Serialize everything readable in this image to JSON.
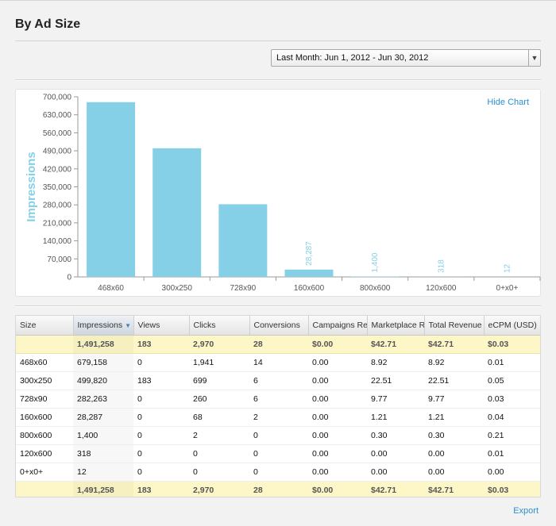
{
  "page": {
    "title": "By Ad Size",
    "date_range": "Last Month: Jun 1, 2012 - Jun 30, 2012",
    "hide_chart_label": "Hide Chart",
    "export_label": "Export"
  },
  "chart_data": {
    "type": "bar",
    "categories": [
      "468x60",
      "300x250",
      "728x90",
      "160x600",
      "800x600",
      "120x600",
      "0+x0+"
    ],
    "values": [
      679158,
      499820,
      282263,
      28287,
      1400,
      318,
      12
    ],
    "data_labels": [
      "",
      "",
      "",
      "28,287",
      "1,400",
      "318",
      "12"
    ],
    "ylabel": "Impressions",
    "ylim": [
      0,
      700000
    ],
    "yticks": [
      0,
      70000,
      140000,
      210000,
      280000,
      350000,
      420000,
      490000,
      560000,
      630000,
      700000
    ],
    "ytick_labels": [
      "0",
      "70,000",
      "140,000",
      "210,000",
      "280,000",
      "350,000",
      "420,000",
      "490,000",
      "560,000",
      "630,000",
      "700,000"
    ],
    "grid": false,
    "bar_color": "#85d0e6",
    "label_color": "#85d0e6"
  },
  "table": {
    "columns": [
      "Size",
      "Impressions",
      "Views",
      "Clicks",
      "Conversions",
      "Campaigns Revenue (USD)",
      "Marketplace Revenue (USD)",
      "Total Revenue (USD)",
      "eCPM (USD)"
    ],
    "sorted_column": "Impressions",
    "top_total": [
      "",
      "1,491,258",
      "183",
      "2,970",
      "28",
      "$0.00",
      "$42.71",
      "$42.71",
      "$0.03"
    ],
    "rows": [
      [
        "468x60",
        "679,158",
        "0",
        "1,941",
        "14",
        "0.00",
        "8.92",
        "8.92",
        "0.01"
      ],
      [
        "300x250",
        "499,820",
        "183",
        "699",
        "6",
        "0.00",
        "22.51",
        "22.51",
        "0.05"
      ],
      [
        "728x90",
        "282,263",
        "0",
        "260",
        "6",
        "0.00",
        "9.77",
        "9.77",
        "0.03"
      ],
      [
        "160x600",
        "28,287",
        "0",
        "68",
        "2",
        "0.00",
        "1.21",
        "1.21",
        "0.04"
      ],
      [
        "800x600",
        "1,400",
        "0",
        "2",
        "0",
        "0.00",
        "0.30",
        "0.30",
        "0.21"
      ],
      [
        "120x600",
        "318",
        "0",
        "0",
        "0",
        "0.00",
        "0.00",
        "0.00",
        "0.01"
      ],
      [
        "0+x0+",
        "12",
        "0",
        "0",
        "0",
        "0.00",
        "0.00",
        "0.00",
        "0.00"
      ]
    ],
    "bottom_total": [
      "",
      "1,491,258",
      "183",
      "2,970",
      "28",
      "$0.00",
      "$42.71",
      "$42.71",
      "$0.03"
    ]
  }
}
